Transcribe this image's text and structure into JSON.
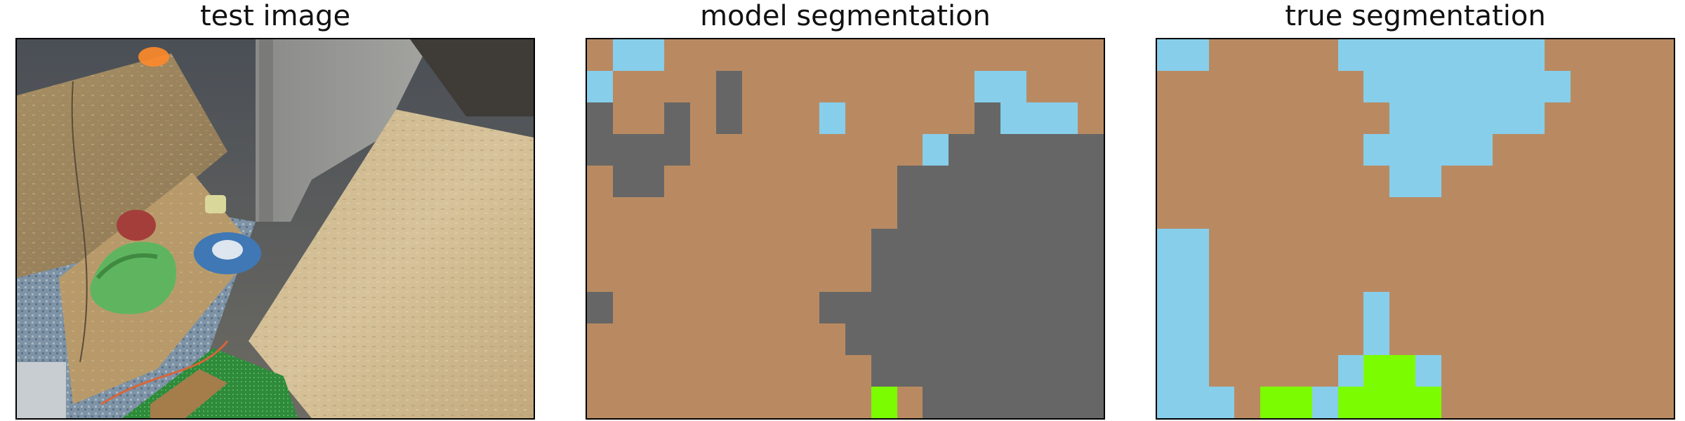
{
  "panels": [
    {
      "title": "test image"
    },
    {
      "title": "model segmentation"
    },
    {
      "title": "true segmentation"
    }
  ],
  "legend_colors": {
    "B": "#b98a61",
    "S": "#87ceeb",
    "D": "#666666",
    "G": "#7cfc00"
  },
  "model_mask": [
    "BSSBBBBBBBBBBBBBBBBB",
    "SBBBBDBBBBBBBBBSSBBB",
    "DBBDBDBBBSBBBBBDSSSB",
    "DDDDBBBBBBBBBSDDDDDD",
    "BDDBBBBBBBBBDDDDDDDD",
    "BBBBBBBBBBBBDDDDDDDD",
    "BBBBBBBBBBBDDDDDDDDD",
    "BBBBBBBBBBBDDDDDDDDD",
    "DBBBBBBBBDDDDDDDDDDD",
    "BBBBBBBBBBDDDDDDDDDD",
    "BBBBBBBBBBBDDDDDDDDD",
    "BBBBBBBBBBBGBDDDDDDD"
  ],
  "true_mask": [
    "SSBBBBBSSSSSSSSBBBBB",
    "BBBBBBBBSSSSSSSSBBBB",
    "BBBBBBBBBSSSSSSBBBBB",
    "BBBBBBBBSSSSSBBBBBBB",
    "BBBBBBBBBSSBBBBBBBBB",
    "BBBBBBBBBBBBBBBBBBBB",
    "SSBBBBBBBBBBBBBBBBBB",
    "SSBBBBBBBBBBBBBBBBBB",
    "SSBBBBBBSBBBBBBBBBBB",
    "SSBBBBBBSBBBBBBBBBBB",
    "SSBBBBBSGGSBBBBBBBBB",
    "SSSBGGSGGGGBBBBBBBBB"
  ]
}
